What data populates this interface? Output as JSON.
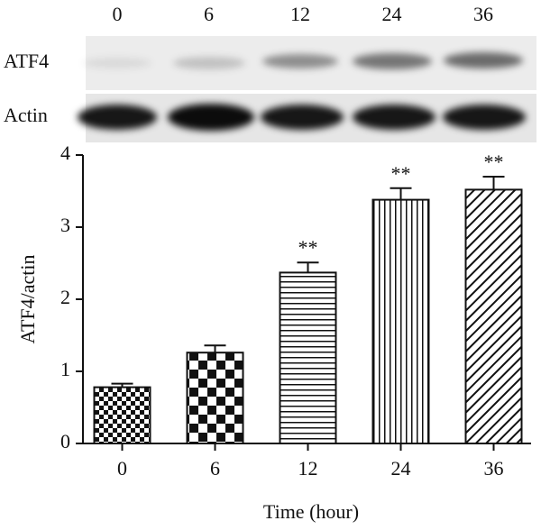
{
  "blot": {
    "lanes": [
      "0",
      "6",
      "12",
      "24",
      "36"
    ],
    "rows": [
      "ATF4",
      "Actin"
    ]
  },
  "chart_data": {
    "type": "bar",
    "y_label": "ATF4/actin",
    "x_label": "Time (hour)",
    "categories": [
      "0",
      "6",
      "12",
      "24",
      "36"
    ],
    "values": [
      0.78,
      1.26,
      2.37,
      3.38,
      3.52
    ],
    "errors": [
      0.05,
      0.1,
      0.14,
      0.16,
      0.18
    ],
    "annotations": [
      {
        "x": "12",
        "text": "**"
      },
      {
        "x": "24",
        "text": "**"
      },
      {
        "x": "36",
        "text": "**"
      }
    ],
    "ylim": [
      0,
      4
    ],
    "yticks": [
      0,
      1,
      2,
      3,
      4
    ],
    "color": "#111111"
  }
}
